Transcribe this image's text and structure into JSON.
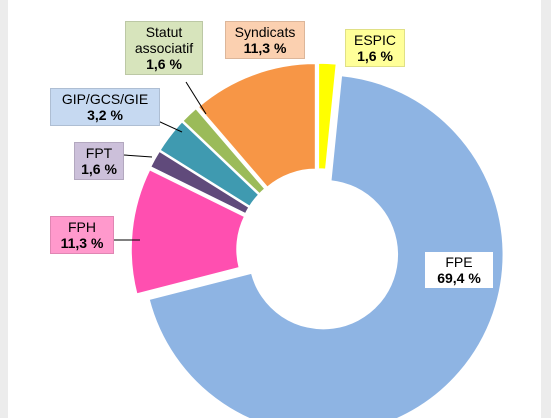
{
  "chart_data": {
    "type": "donut",
    "categories": [
      "ESPIC",
      "FPE",
      "FPH",
      "FPT",
      "GIP/GCS/GIE",
      "Statut associatif",
      "Syndicats"
    ],
    "values": [
      1.6,
      69.4,
      11.3,
      1.6,
      3.2,
      1.6,
      11.3
    ],
    "value_labels": [
      "1,6 %",
      "69,4 %",
      "11,3 %",
      "1,6 %",
      "3,2 %",
      "1,6 %",
      "11,3 %"
    ],
    "colors": [
      "#ffff00",
      "#8eb4e3",
      "#ff4fb0",
      "#604a7b",
      "#3f9ab0",
      "#9bbb59",
      "#f79646"
    ],
    "label_colors": [
      "#ffff99",
      "#ffffff",
      "#ff99cc",
      "#ccc0da",
      "#c6d9f1",
      "#d7e4bc",
      "#fbd0b0"
    ]
  }
}
